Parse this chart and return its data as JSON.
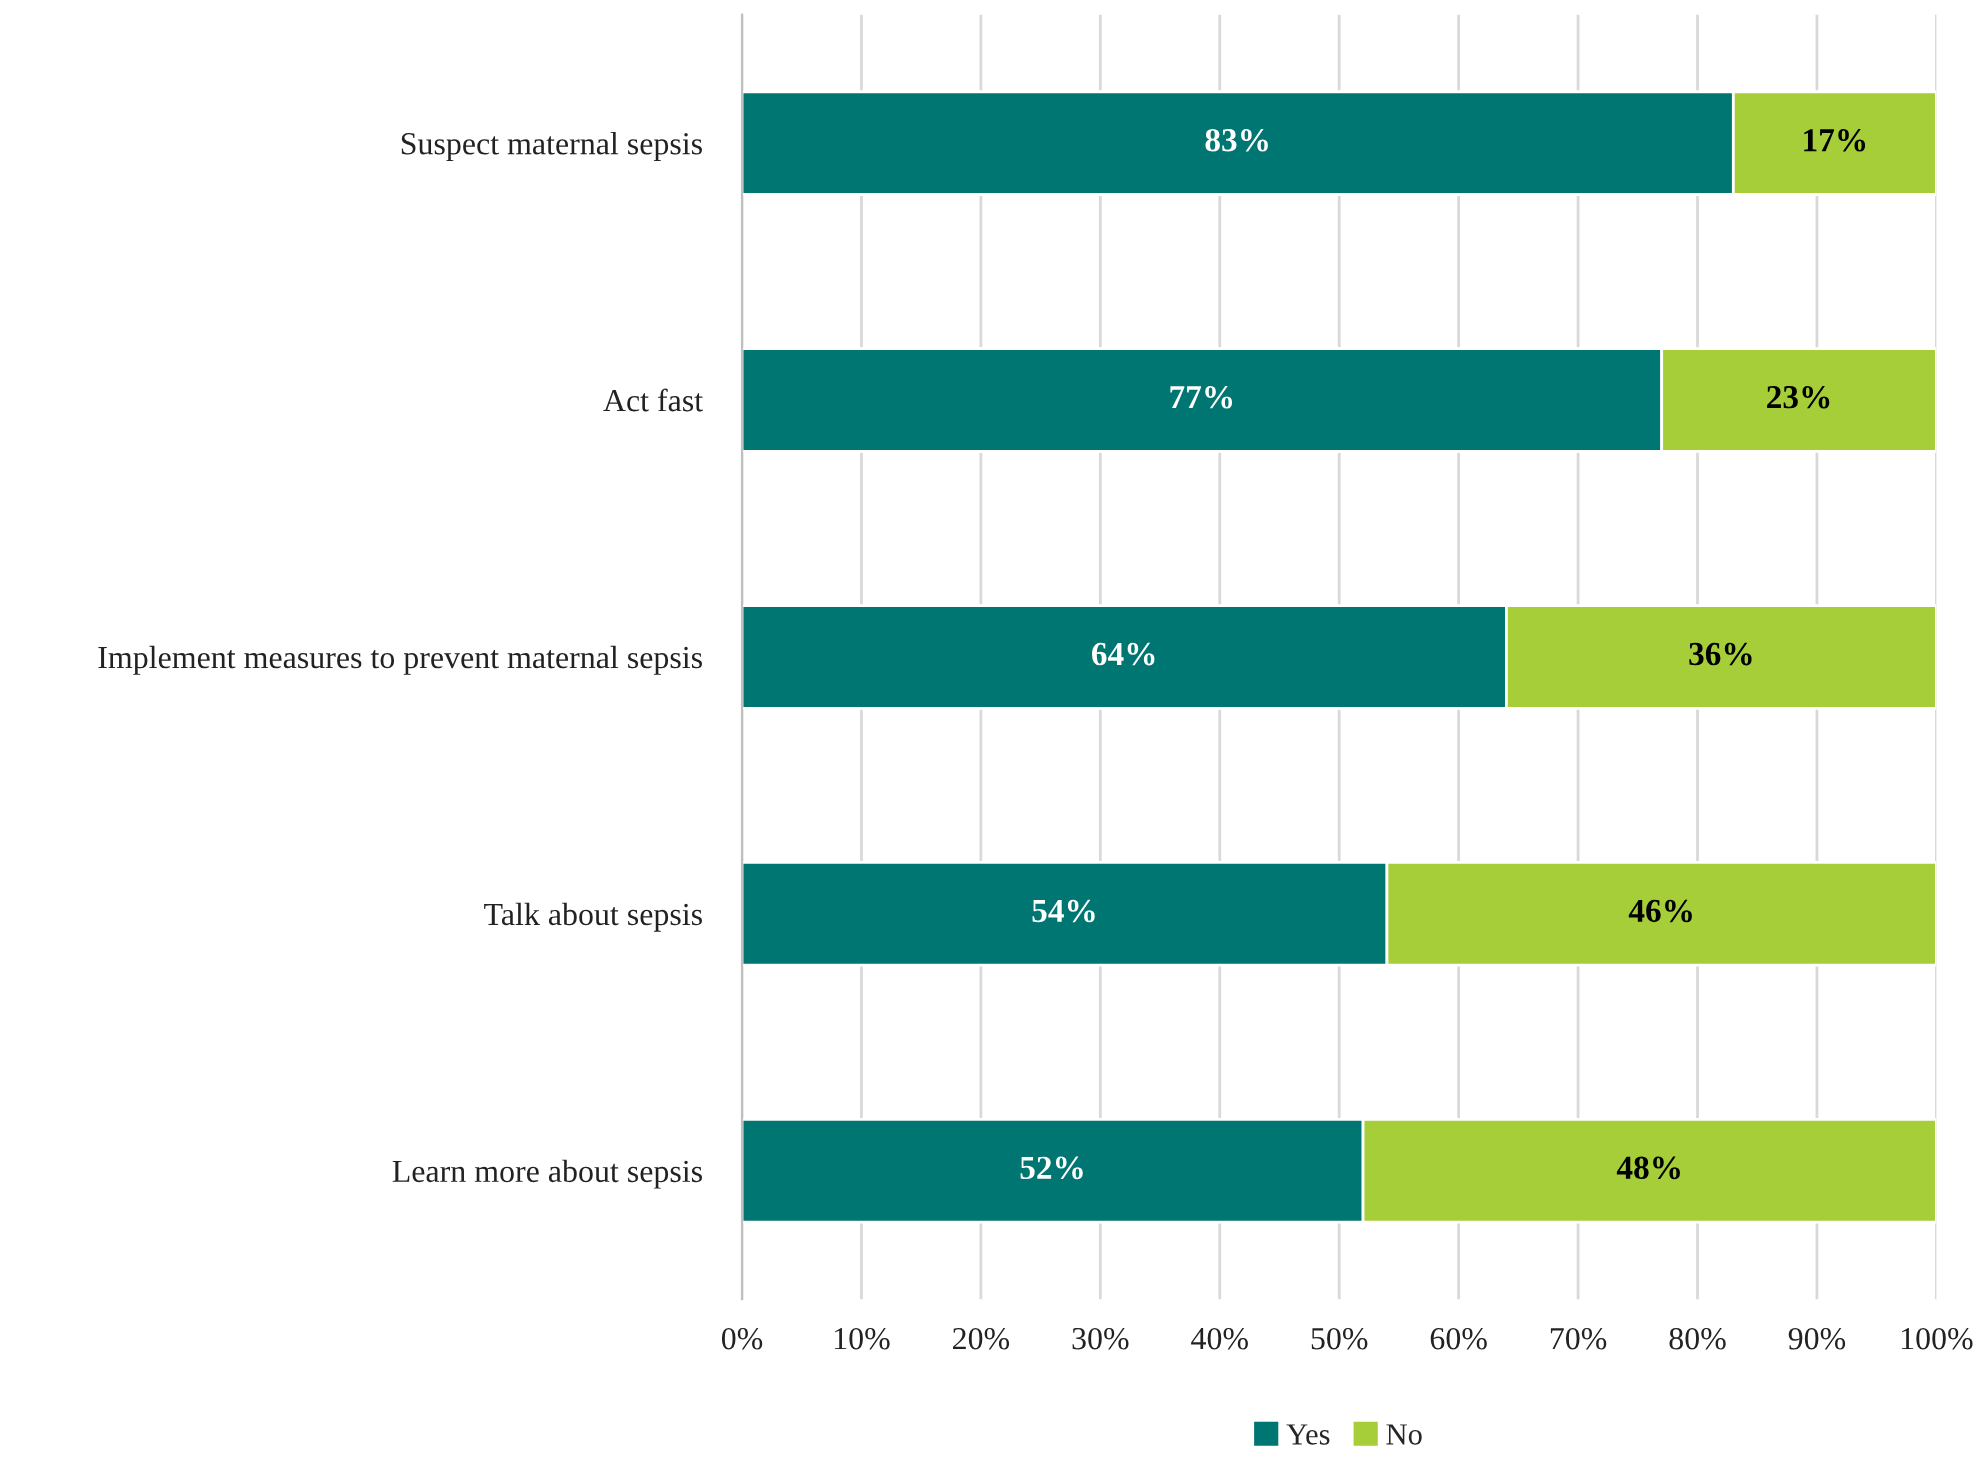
{
  "chart_data": {
    "type": "bar",
    "orientation": "horizontal",
    "stacked": true,
    "categories": [
      "Suspect maternal sepsis",
      "Act fast",
      "Implement measures to prevent maternal sepsis",
      "Talk about sepsis",
      "Learn more about sepsis"
    ],
    "series": [
      {
        "name": "Yes",
        "color": "#007672",
        "values": [
          83,
          77,
          64,
          54,
          52
        ],
        "value_labels": [
          "83%",
          "77%",
          "64%",
          "54%",
          "52%"
        ]
      },
      {
        "name": "No",
        "color": "#a6ce39",
        "values": [
          17,
          23,
          36,
          46,
          48
        ],
        "value_labels": [
          "17%",
          "23%",
          "36%",
          "46%",
          "48%"
        ]
      }
    ],
    "xlim": [
      0,
      100
    ],
    "xticks": [
      {
        "value": 0,
        "label": "0%"
      },
      {
        "value": 10,
        "label": "10%"
      },
      {
        "value": 20,
        "label": "20%"
      },
      {
        "value": 30,
        "label": "30%"
      },
      {
        "value": 40,
        "label": "40%"
      },
      {
        "value": 50,
        "label": "50%"
      },
      {
        "value": 60,
        "label": "60%"
      },
      {
        "value": 70,
        "label": "70%"
      },
      {
        "value": 80,
        "label": "80%"
      },
      {
        "value": 90,
        "label": "90%"
      },
      {
        "value": 100,
        "label": "100%"
      }
    ],
    "grid": "x",
    "legend": "bottom"
  }
}
